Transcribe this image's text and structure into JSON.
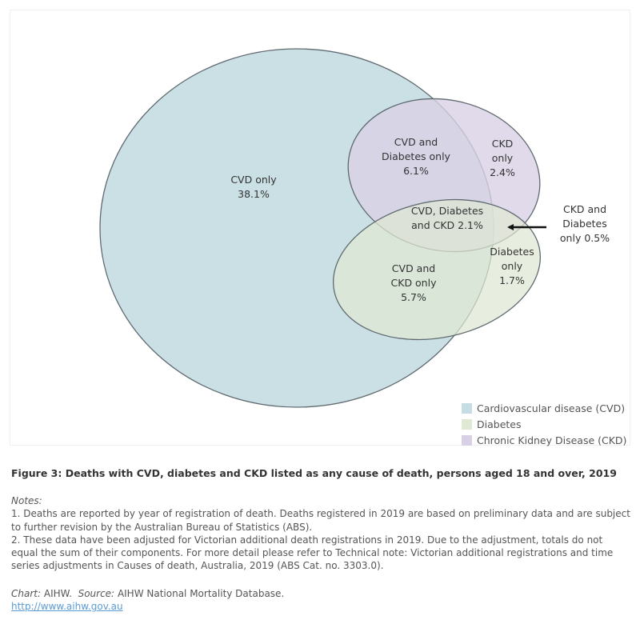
{
  "chart_data": {
    "type": "venn",
    "sets": [
      {
        "key": "cvd",
        "name": "Cardiovascular disease (CVD)",
        "color": "#c5dde3"
      },
      {
        "key": "diabetes",
        "name": "Diabetes",
        "color": "#dfe8d3"
      },
      {
        "key": "ckd",
        "name": "Chronic Kidney Disease (CKD)",
        "color": "#d8d1e5"
      }
    ],
    "regions": [
      {
        "sets": [
          "cvd"
        ],
        "lines": [
          "CVD only",
          "38.1%"
        ],
        "value": 38.1
      },
      {
        "sets": [
          "cvd",
          "diabetes"
        ],
        "lines": [
          "CVD and",
          "Diabetes only",
          "6.1%"
        ],
        "value": 6.1
      },
      {
        "sets": [
          "ckd"
        ],
        "lines": [
          "CKD",
          "only",
          "2.4%"
        ],
        "value": 2.4
      },
      {
        "sets": [
          "cvd",
          "diabetes",
          "ckd"
        ],
        "lines": [
          "CVD, Diabetes",
          "and CKD 2.1%"
        ],
        "value": 2.1
      },
      {
        "sets": [
          "ckd",
          "diabetes"
        ],
        "lines": [
          "CKD and",
          "Diabetes",
          "only 0.5%"
        ],
        "value": 0.5
      },
      {
        "sets": [
          "diabetes"
        ],
        "lines": [
          "Diabetes",
          "only",
          "1.7%"
        ],
        "value": 1.7
      },
      {
        "sets": [
          "cvd",
          "ckd"
        ],
        "lines": [
          "CVD and",
          "CKD only",
          "5.7%"
        ],
        "value": 5.7
      }
    ],
    "legend_position": "bottom-right"
  },
  "caption": "Figure 3: Deaths with CVD, diabetes and CKD listed as any cause of death, persons aged 18 and over, 2019",
  "notes": {
    "heading": "Notes:",
    "items": [
      "1. Deaths are reported by year of registration of death. Deaths registered in 2019 are based on preliminary data and are subject to further revision by the Australian Bureau of Statistics (ABS).",
      "2. These data have been adjusted for Victorian additional death registrations in 2019. Due to the adjustment, totals do not equal the sum of their components. For more detail please refer to Technical note: Victorian additional registrations and time series adjustments in Causes of death, Australia, 2019 (ABS Cat. no. 3303.0)."
    ]
  },
  "credit": {
    "chart_label": "Chart:",
    "chart_value": "AIHW.",
    "source_label": "Source:",
    "source_value": "AIHW National Mortality Database.",
    "url": "http://www.aihw.gov.au"
  }
}
